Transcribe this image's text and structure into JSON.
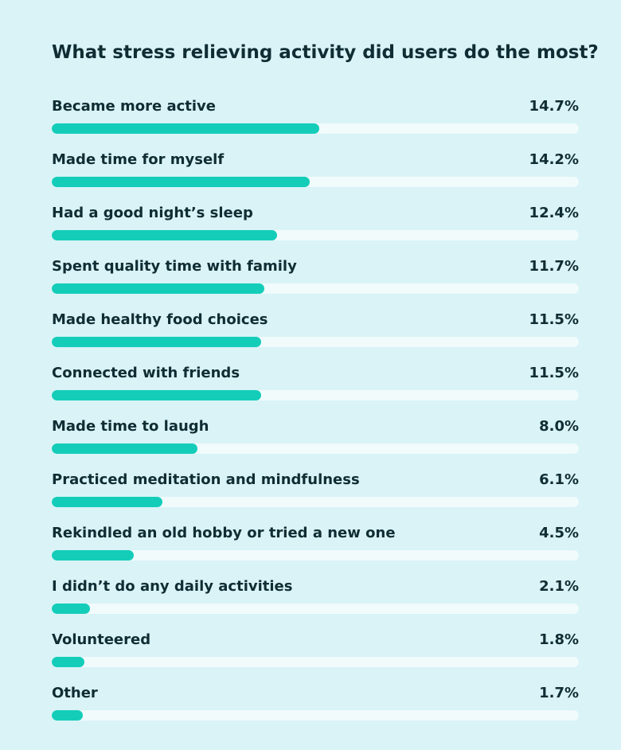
{
  "title": "What stress relieving activity did users do the most?",
  "colors": {
    "background": "#d9f3f7",
    "bar": "#14cdb9",
    "track": "#f1fbfc",
    "text": "#0f2d33"
  },
  "chart_data": {
    "type": "bar",
    "orientation": "horizontal",
    "title": "What stress relieving activity did users do the most?",
    "xlabel": "",
    "ylabel": "",
    "xlim": [
      0,
      29
    ],
    "categories": [
      "Became more active",
      "Made time for myself",
      "Had a good night’s sleep",
      "Spent quality time with family",
      "Made healthy food choices",
      "Connected with friends",
      "Made time to laugh",
      "Practiced meditation and mindfulness",
      "Rekindled an old hobby or tried a new one",
      "I didn’t do any daily activities",
      "Volunteered",
      "Other"
    ],
    "values": [
      14.7,
      14.2,
      12.4,
      11.7,
      11.5,
      11.5,
      8.0,
      6.1,
      4.5,
      2.1,
      1.8,
      1.7
    ],
    "value_labels": [
      "14.7%",
      "14.2%",
      "12.4%",
      "11.7%",
      "11.5%",
      "11.5%",
      "8.0%",
      "6.1%",
      "4.5%",
      "2.1%",
      "1.8%",
      "1.7%"
    ],
    "grid": false,
    "legend": "none"
  }
}
